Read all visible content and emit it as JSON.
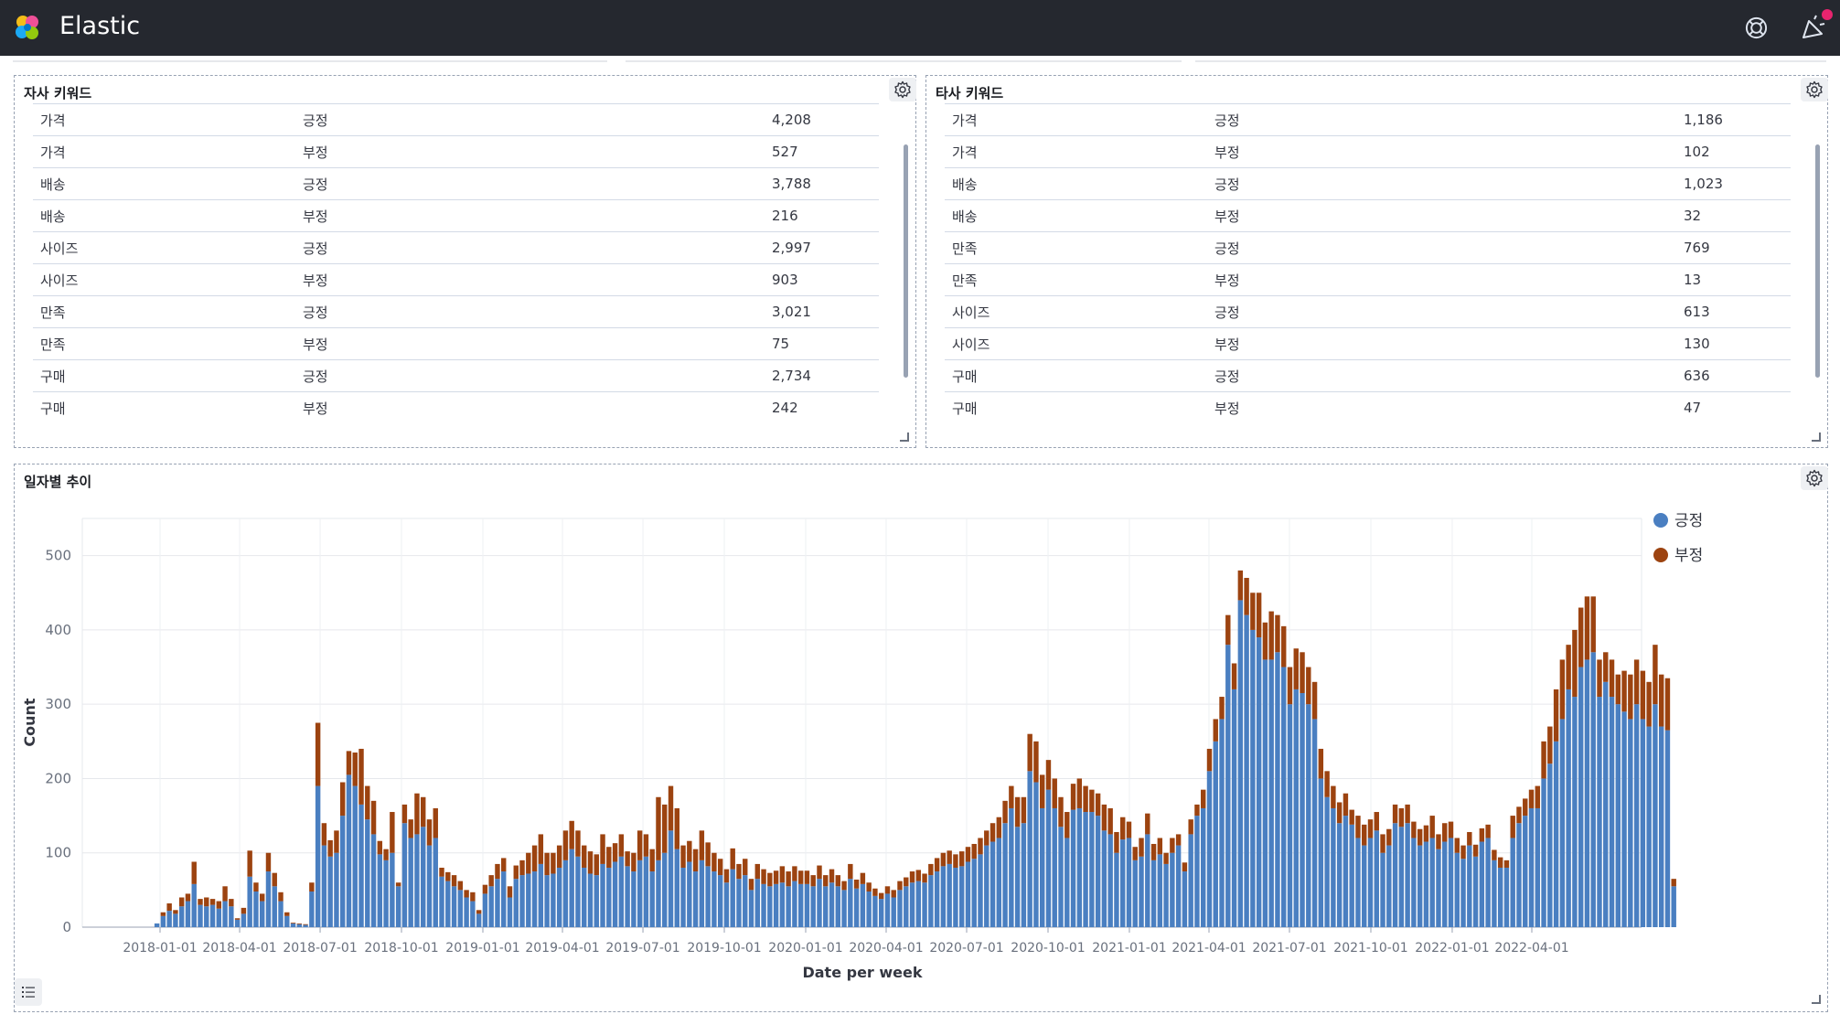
{
  "app": {
    "title": "Elastic"
  },
  "icons": {
    "logo": "elastic-logo",
    "help": "help-icon",
    "news": "news-icon",
    "settings": "gear-icon",
    "legend": "list-icon"
  },
  "colors": {
    "positive": "#4a7fc1",
    "negative": "#9c4310",
    "topbar": "#25282f"
  },
  "panel_own": {
    "title": "자사 키워드",
    "rows": [
      [
        "가격",
        "긍정",
        "4,208"
      ],
      [
        "가격",
        "부정",
        "527"
      ],
      [
        "배송",
        "긍정",
        "3,788"
      ],
      [
        "배송",
        "부정",
        "216"
      ],
      [
        "사이즈",
        "긍정",
        "2,997"
      ],
      [
        "사이즈",
        "부정",
        "903"
      ],
      [
        "만족",
        "긍정",
        "3,021"
      ],
      [
        "만족",
        "부정",
        "75"
      ],
      [
        "구매",
        "긍정",
        "2,734"
      ],
      [
        "구매",
        "부정",
        "242"
      ]
    ]
  },
  "panel_other": {
    "title": "타사 키워드",
    "rows": [
      [
        "가격",
        "긍정",
        "1,186"
      ],
      [
        "가격",
        "부정",
        "102"
      ],
      [
        "배송",
        "긍정",
        "1,023"
      ],
      [
        "배송",
        "부정",
        "32"
      ],
      [
        "만족",
        "긍정",
        "769"
      ],
      [
        "만족",
        "부정",
        "13"
      ],
      [
        "사이즈",
        "긍정",
        "613"
      ],
      [
        "사이즈",
        "부정",
        "130"
      ],
      [
        "구매",
        "긍정",
        "636"
      ],
      [
        "구매",
        "부정",
        "47"
      ]
    ]
  },
  "panel_trend": {
    "title": "일자별 추이"
  },
  "chart_data": {
    "type": "bar",
    "stacked": true,
    "xlabel": "Date per week",
    "ylabel": "Count",
    "ylim": [
      0,
      550
    ],
    "yticks": [
      0,
      100,
      200,
      300,
      400,
      500
    ],
    "xtick_labels": [
      "2018-01-01",
      "2018-04-01",
      "2018-07-01",
      "2018-10-01",
      "2019-01-01",
      "2019-04-01",
      "2019-07-01",
      "2019-10-01",
      "2020-01-01",
      "2020-04-01",
      "2020-07-01",
      "2020-10-01",
      "2021-01-01",
      "2021-04-01",
      "2021-07-01",
      "2021-10-01",
      "2022-01-01",
      "2022-04-01"
    ],
    "legend": {
      "position": "top-right"
    },
    "grid": true,
    "x_start": "2017-12-25",
    "x_step_days": 7,
    "series": [
      {
        "name": "긍정",
        "color": "#4a7fc1",
        "values": [
          5,
          15,
          22,
          18,
          28,
          35,
          58,
          30,
          28,
          30,
          25,
          35,
          28,
          10,
          18,
          68,
          48,
          35,
          75,
          55,
          35,
          15,
          5,
          4,
          3,
          48,
          190,
          110,
          95,
          100,
          150,
          205,
          190,
          165,
          145,
          125,
          98,
          90,
          100,
          55,
          140,
          120,
          125,
          135,
          110,
          120,
          68,
          62,
          55,
          50,
          40,
          35,
          18,
          45,
          55,
          65,
          75,
          40,
          65,
          70,
          72,
          75,
          85,
          70,
          72,
          80,
          90,
          105,
          95,
          80,
          72,
          70,
          85,
          80,
          88,
          95,
          82,
          75,
          90,
          95,
          75,
          90,
          100,
          130,
          105,
          80,
          88,
          75,
          90,
          82,
          75,
          70,
          60,
          78,
          65,
          70,
          50,
          65,
          58,
          55,
          58,
          60,
          55,
          62,
          58,
          58,
          55,
          65,
          55,
          60,
          55,
          50,
          65,
          52,
          58,
          48,
          42,
          38,
          45,
          40,
          50,
          55,
          60,
          62,
          60,
          70,
          75,
          82,
          85,
          80,
          82,
          88,
          92,
          98,
          110,
          115,
          120,
          140,
          160,
          135,
          140,
          210,
          195,
          160,
          185,
          160,
          135,
          120,
          158,
          160,
          155,
          155,
          150,
          130,
          125,
          100,
          118,
          120,
          90,
          95,
          125,
          90,
          98,
          85,
          100,
          110,
          75,
          125,
          150,
          160,
          210,
          250,
          280,
          380,
          320,
          440,
          420,
          400,
          390,
          360,
          360,
          370,
          350,
          300,
          320,
          315,
          300,
          280,
          200,
          175,
          160,
          140,
          150,
          138,
          120,
          110,
          120,
          130,
          100,
          110,
          140,
          135,
          140,
          120,
          110,
          115,
          120,
          105,
          115,
          120,
          100,
          92,
          110,
          95,
          115,
          120,
          90,
          80,
          80,
          120,
          140,
          150,
          160,
          160,
          200,
          220,
          250,
          280,
          320,
          310,
          350,
          360,
          370,
          310,
          330,
          310,
          300,
          290,
          280,
          300,
          280,
          270,
          300,
          270,
          265,
          55
        ]
      },
      {
        "name": "부정",
        "color": "#9c4310",
        "values": [
          0,
          5,
          10,
          5,
          12,
          10,
          30,
          8,
          12,
          8,
          10,
          20,
          10,
          2,
          8,
          35,
          12,
          10,
          25,
          18,
          12,
          5,
          1,
          1,
          1,
          12,
          85,
          30,
          22,
          30,
          45,
          32,
          45,
          75,
          45,
          45,
          18,
          15,
          55,
          5,
          25,
          25,
          55,
          40,
          35,
          40,
          12,
          12,
          15,
          12,
          10,
          12,
          5,
          12,
          15,
          20,
          18,
          15,
          18,
          20,
          28,
          35,
          40,
          30,
          28,
          30,
          40,
          38,
          35,
          30,
          30,
          28,
          40,
          28,
          25,
          30,
          20,
          25,
          40,
          30,
          30,
          85,
          65,
          60,
          55,
          30,
          28,
          30,
          40,
          32,
          25,
          22,
          18,
          28,
          20,
          22,
          15,
          20,
          20,
          18,
          18,
          22,
          20,
          20,
          18,
          18,
          15,
          18,
          15,
          18,
          15,
          12,
          20,
          12,
          15,
          12,
          10,
          8,
          10,
          10,
          12,
          12,
          15,
          15,
          12,
          15,
          18,
          18,
          18,
          18,
          20,
          20,
          20,
          22,
          20,
          25,
          28,
          30,
          30,
          40,
          35,
          50,
          55,
          45,
          40,
          40,
          40,
          35,
          35,
          40,
          35,
          30,
          30,
          35,
          35,
          28,
          30,
          22,
          18,
          25,
          28,
          22,
          22,
          15,
          20,
          15,
          12,
          20,
          15,
          25,
          30,
          30,
          30,
          40,
          35,
          40,
          50,
          50,
          60,
          50,
          65,
          50,
          55,
          50,
          55,
          55,
          50,
          50,
          40,
          35,
          30,
          28,
          30,
          20,
          30,
          28,
          25,
          25,
          25,
          22,
          25,
          25,
          25,
          22,
          22,
          22,
          30,
          20,
          25,
          22,
          20,
          18,
          18,
          16,
          18,
          18,
          14,
          14,
          10,
          30,
          22,
          23,
          25,
          30,
          50,
          50,
          70,
          80,
          60,
          90,
          80,
          85,
          75,
          50,
          40,
          50,
          40,
          55,
          60,
          60,
          65,
          60,
          80,
          70,
          70,
          10
        ]
      }
    ]
  }
}
